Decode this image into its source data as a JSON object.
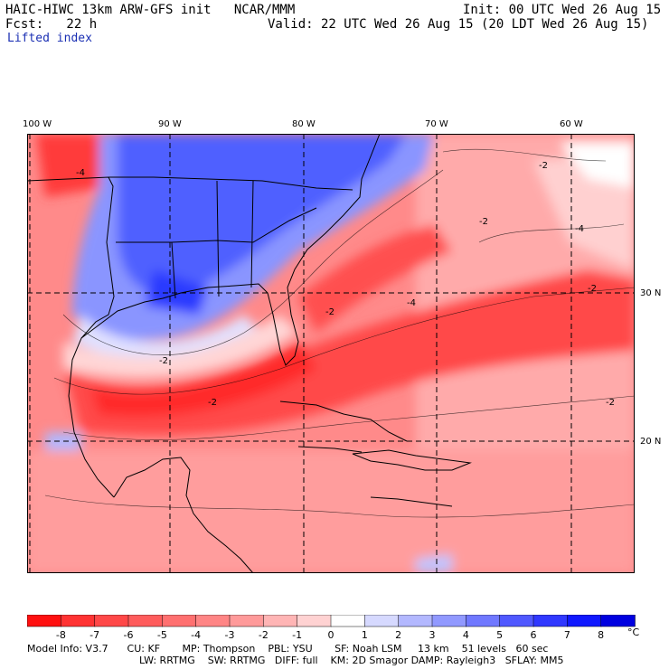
{
  "header": {
    "title": "HAIC-HIWC 13km ARW-GFS init   NCAR/MMM",
    "fcst": "Fcst:   22 h",
    "field": "Lifted index",
    "init": "Init: 00 UTC Wed 26 Aug 15",
    "valid": "Valid: 22 UTC Wed 26 Aug 15 (20 LDT Wed 26 Aug 15)"
  },
  "axes": {
    "lon_labels": [
      "100 W",
      "90 W",
      "80 W",
      "70 W",
      "60 W"
    ],
    "lat_labels": [
      "30 N",
      "20 N"
    ]
  },
  "contour_labels": [
    "-4",
    "-4",
    "-2",
    "-2",
    "-2",
    "-2",
    "-4",
    "-2",
    "-2",
    "-2"
  ],
  "colorbar": {
    "ticks": [
      "-8",
      "-7",
      "-6",
      "-5",
      "-4",
      "-3",
      "-2",
      "-1",
      "0",
      "1",
      "2",
      "3",
      "4",
      "5",
      "6",
      "7",
      "8"
    ],
    "unit": "°C",
    "colors": [
      "#ff1010",
      "#ff3333",
      "#ff4848",
      "#ff5c5c",
      "#ff7070",
      "#ff8585",
      "#ff9a9a",
      "#ffb5b5",
      "#ffd2d2",
      "#ffffff",
      "#d6d9ff",
      "#b3b8ff",
      "#9199ff",
      "#7078ff",
      "#5058ff",
      "#3038ff",
      "#1018ff",
      "#0000e0"
    ]
  },
  "model_info": {
    "line1": "Model Info: V3.7      CU: KF       MP: Thompson    PBL: YSU       SF: Noah LSM     13 km    51 levels   60 sec",
    "line2": "LW: RRTMG    SW: RRTMG   DIFF: full    KM: 2D Smagor DAMP: Rayleigh3   SFLAY: MM5"
  }
}
